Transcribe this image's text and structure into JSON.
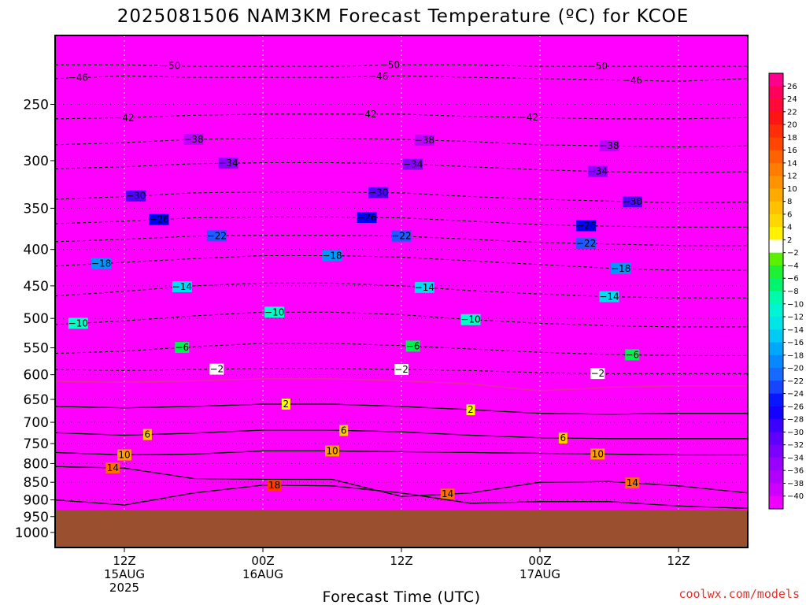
{
  "chart_data": {
    "type": "heatmap",
    "title": "2025081506 NAM3KM Forecast Temperature (ºC) for KCOE",
    "xlabel": "Forecast Time (UTC)",
    "ylabel": "",
    "credit": "coolwx.com/models",
    "y_axis": {
      "scale": "log",
      "ylim": [
        1050,
        200
      ],
      "ticks": [
        250,
        300,
        350,
        400,
        450,
        500,
        550,
        600,
        650,
        700,
        750,
        800,
        850,
        900,
        950,
        1000
      ],
      "tick_labels": [
        "250",
        "300",
        "350",
        "400",
        "450",
        "500",
        "550",
        "600",
        "650",
        "700",
        "750",
        "800",
        "850",
        "900",
        "950",
        "1000"
      ]
    },
    "x_axis": {
      "xlim": [
        0,
        60
      ],
      "ticks": [
        {
          "hour": 6,
          "lines": [
            "12Z",
            "15AUG",
            "2025"
          ]
        },
        {
          "hour": 18,
          "lines": [
            "00Z",
            "16AUG"
          ]
        },
        {
          "hour": 30,
          "lines": [
            "12Z"
          ]
        },
        {
          "hour": 42,
          "lines": [
            "00Z",
            "17AUG"
          ]
        },
        {
          "hour": 54,
          "lines": [
            "12Z"
          ]
        }
      ]
    },
    "surface_pressure": 930,
    "colorbar": {
      "ticks": [
        26,
        24,
        22,
        20,
        18,
        16,
        14,
        12,
        10,
        8,
        6,
        4,
        2,
        -2,
        -4,
        -6,
        -8,
        -10,
        -12,
        -14,
        -16,
        -18,
        -20,
        -22,
        -24,
        -26,
        -28,
        -30,
        -32,
        -34,
        -36,
        -38,
        -40
      ],
      "tick_labels": [
        "26",
        "24",
        "22",
        "20",
        "18",
        "16",
        "14",
        "12",
        "10",
        "8",
        "6",
        "4",
        "2",
        "−2",
        "−4",
        "−6",
        "−8",
        "−10",
        "−12",
        "−14",
        "−16",
        "−18",
        "−20",
        "−22",
        "−24",
        "−26",
        "−28",
        "−30",
        "−32",
        "−34",
        "−36",
        "−38",
        "−40"
      ]
    },
    "hours": [
      0,
      6,
      12,
      18,
      24,
      30,
      36,
      42,
      48,
      54,
      60
    ],
    "isotherms": [
      {
        "value": -50,
        "label": "50",
        "pressures": [
          220,
          220,
          221,
          221,
          221,
          220,
          220,
          221,
          221,
          221,
          221
        ],
        "labels_at": [
          10,
          29,
          47
        ]
      },
      {
        "value": -46,
        "label": "46",
        "pressures": [
          230,
          228,
          229,
          229,
          229,
          228,
          229,
          230,
          231,
          232,
          230
        ],
        "labels_at": [
          2,
          28,
          50
        ]
      },
      {
        "value": -42,
        "label": "42",
        "pressures": [
          262,
          261,
          259,
          258,
          258,
          258,
          260,
          261,
          262,
          262,
          261
        ],
        "labels_at": [
          6,
          27,
          41
        ]
      },
      {
        "value": -38,
        "label": "38",
        "pressures": [
          285,
          283,
          280,
          279,
          279,
          280,
          282,
          285,
          286,
          287,
          286
        ],
        "labels_at": [
          12,
          32,
          48
        ]
      },
      {
        "value": -34,
        "label": "34",
        "pressures": [
          308,
          306,
          303,
          302,
          302,
          303,
          306,
          309,
          311,
          312,
          311
        ],
        "labels_at": [
          15,
          31,
          47
        ]
      },
      {
        "value": -30,
        "label": "30",
        "pressures": [
          340,
          337,
          333,
          332,
          332,
          333,
          337,
          340,
          342,
          344,
          343
        ],
        "labels_at": [
          7,
          28,
          50
        ]
      },
      {
        "value": -26,
        "label": "26",
        "pressures": [
          368,
          365,
          361,
          360,
          360,
          361,
          365,
          369,
          371,
          372,
          372
        ],
        "labels_at": [
          9,
          27,
          46
        ]
      },
      {
        "value": -22,
        "label": "22",
        "pressures": [
          390,
          387,
          383,
          382,
          382,
          383,
          387,
          391,
          393,
          395,
          395
        ],
        "labels_at": [
          14,
          30,
          46
        ]
      },
      {
        "value": -18,
        "label": "18",
        "pressures": [
          422,
          417,
          412,
          408,
          408,
          410,
          415,
          420,
          425,
          428,
          428
        ],
        "labels_at": [
          4,
          24,
          49
        ]
      },
      {
        "value": -14,
        "label": "14",
        "pressures": [
          465,
          458,
          450,
          446,
          446,
          450,
          457,
          462,
          466,
          468,
          468
        ],
        "labels_at": [
          11,
          32,
          48
        ]
      },
      {
        "value": -10,
        "label": "10",
        "pressures": [
          510,
          504,
          496,
          490,
          490,
          494,
          502,
          508,
          512,
          514,
          514
        ],
        "labels_at": [
          2,
          19,
          36
        ]
      },
      {
        "value": -6,
        "label": "6",
        "pressures": [
          560,
          556,
          548,
          542,
          542,
          546,
          552,
          558,
          562,
          564,
          564
        ],
        "labels_at": [
          11,
          31,
          50
        ]
      },
      {
        "value": -2,
        "label": "2",
        "pressures": [
          590,
          592,
          590,
          588,
          588,
          590,
          592,
          596,
          598,
          598,
          598
        ],
        "labels_at": [
          14,
          30,
          47
        ]
      },
      {
        "value": 0,
        "label": "",
        "pressures": [
          613,
          615,
          612,
          608,
          608,
          612,
          618,
          632,
          625,
          622,
          622
        ],
        "labels_at": []
      },
      {
        "value": 2,
        "label": "2",
        "pressures": [
          665,
          668,
          665,
          660,
          660,
          665,
          672,
          680,
          682,
          680,
          680
        ],
        "labels_at": [
          20,
          36
        ]
      },
      {
        "value": 6,
        "label": "6",
        "pressures": [
          724,
          730,
          725,
          718,
          718,
          722,
          730,
          736,
          738,
          738,
          738
        ],
        "labels_at": [
          8,
          25,
          44
        ]
      },
      {
        "value": 10,
        "label": "10",
        "pressures": [
          772,
          778,
          776,
          768,
          768,
          770,
          772,
          774,
          776,
          778,
          778
        ],
        "labels_at": [
          6,
          24,
          47
        ]
      },
      {
        "value": 14,
        "label": "14",
        "pressures": [
          808,
          812,
          840,
          842,
          842,
          890,
          880,
          850,
          848,
          860,
          880
        ],
        "labels_at": [
          5,
          34,
          50
        ]
      },
      {
        "value": 18,
        "label": "18",
        "pressures": [
          900,
          915,
          880,
          858,
          860,
          880,
          910,
          905,
          905,
          918,
          925
        ],
        "labels_at": [
          19
        ]
      }
    ]
  }
}
